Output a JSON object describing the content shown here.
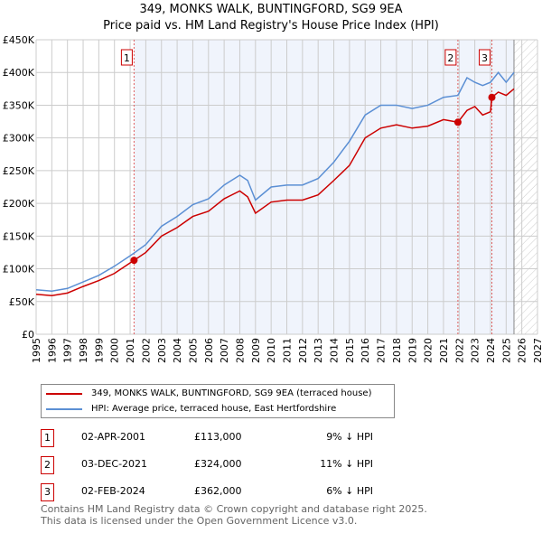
{
  "title": "349, MONKS WALK, BUNTINGFORD, SG9 9EA",
  "subtitle": "Price paid vs. HM Land Registry's House Price Index (HPI)",
  "chart_data": {
    "type": "line",
    "ylim": [
      0,
      450000
    ],
    "xlim": [
      1995,
      2027
    ],
    "yticks": [
      0,
      50000,
      100000,
      150000,
      200000,
      250000,
      300000,
      350000,
      400000,
      450000
    ],
    "ytick_labels": [
      "£0",
      "£50K",
      "£100K",
      "£150K",
      "£200K",
      "£250K",
      "£300K",
      "£350K",
      "£400K",
      "£450K"
    ],
    "xticks": [
      1995,
      1996,
      1997,
      1998,
      1999,
      2000,
      2001,
      2002,
      2003,
      2004,
      2005,
      2006,
      2007,
      2008,
      2009,
      2010,
      2011,
      2012,
      2013,
      2014,
      2015,
      2016,
      2017,
      2018,
      2019,
      2020,
      2021,
      2022,
      2023,
      2024,
      2025,
      2026,
      2027
    ],
    "series": [
      {
        "name": "349, MONKS WALK, BUNTINGFORD, SG9 9EA (terraced house)",
        "color": "#cc0000",
        "x": [
          1995,
          1996,
          1997,
          1998,
          1999,
          2000,
          2001,
          2001.25,
          2002,
          2003,
          2004,
          2005,
          2006,
          2007,
          2008,
          2008.5,
          2009,
          2010,
          2011,
          2012,
          2013,
          2014,
          2015,
          2016,
          2017,
          2018,
          2019,
          2020,
          2021,
          2021.92,
          2022.5,
          2023,
          2023.5,
          2024,
          2024.09,
          2024.5,
          2025,
          2025.5
        ],
        "y": [
          61000,
          59000,
          63000,
          73000,
          82000,
          93000,
          109000,
          113000,
          125000,
          150000,
          163000,
          180000,
          188000,
          207000,
          219000,
          210000,
          185000,
          202000,
          205000,
          205000,
          213000,
          235000,
          258000,
          300000,
          315000,
          320000,
          315000,
          318000,
          328000,
          324000,
          342000,
          348000,
          335000,
          340000,
          362000,
          370000,
          365000,
          375000
        ]
      },
      {
        "name": "HPI: Average price, terraced house, East Hertfordshire",
        "color": "#5b8fd4",
        "x": [
          1995,
          1996,
          1997,
          1998,
          1999,
          2000,
          2001,
          2001.25,
          2002,
          2003,
          2004,
          2005,
          2006,
          2007,
          2008,
          2008.5,
          2009,
          2010,
          2011,
          2012,
          2013,
          2014,
          2015,
          2016,
          2017,
          2018,
          2019,
          2020,
          2021,
          2021.92,
          2022.5,
          2023,
          2023.5,
          2024,
          2024.5,
          2025,
          2025.5
        ],
        "y": [
          68000,
          66000,
          70000,
          80000,
          90000,
          104000,
          120000,
          124000,
          137000,
          165000,
          180000,
          198000,
          207000,
          228000,
          243000,
          235000,
          205000,
          225000,
          228000,
          228000,
          238000,
          263000,
          295000,
          335000,
          350000,
          350000,
          345000,
          350000,
          362000,
          365000,
          392000,
          385000,
          380000,
          385000,
          400000,
          385000,
          400000
        ]
      }
    ],
    "sales": [
      {
        "label": "1",
        "x": 2001.25,
        "y": 113000
      },
      {
        "label": "2",
        "x": 2021.92,
        "y": 324000
      },
      {
        "label": "3",
        "x": 2024.09,
        "y": 362000
      }
    ],
    "forecast_from": 2025.5
  },
  "legend": [
    "349, MONKS WALK, BUNTINGFORD, SG9 9EA (terraced house)",
    "HPI: Average price, terraced house, East Hertfordshire"
  ],
  "table": [
    {
      "n": "1",
      "date": "02-APR-2001",
      "price": "£113,000",
      "hpi": "9% ↓ HPI"
    },
    {
      "n": "2",
      "date": "03-DEC-2021",
      "price": "£324,000",
      "hpi": "11% ↓ HPI"
    },
    {
      "n": "3",
      "date": "02-FEB-2024",
      "price": "£362,000",
      "hpi": "6% ↓ HPI"
    }
  ],
  "footer": [
    "Contains HM Land Registry data © Crown copyright and database right 2025.",
    "This data is licensed under the Open Government Licence v3.0."
  ]
}
